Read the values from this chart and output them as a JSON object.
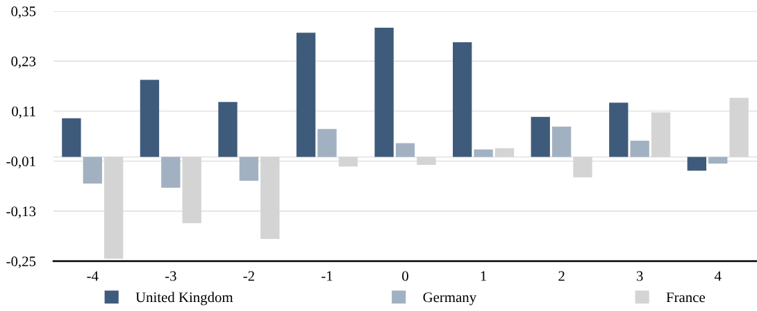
{
  "chart_data": {
    "type": "bar",
    "categories": [
      "-4",
      "-3",
      "-2",
      "-1",
      "0",
      "1",
      "2",
      "3",
      "4"
    ],
    "series": [
      {
        "name": "United Kingdom",
        "color": "#3f5b7b",
        "values": [
          0.093,
          0.185,
          0.132,
          0.298,
          0.31,
          0.275,
          0.096,
          0.13,
          -0.033
        ]
      },
      {
        "name": "Germany",
        "color": "#a2b1c2",
        "values": [
          -0.064,
          -0.074,
          -0.057,
          0.067,
          0.033,
          0.018,
          0.073,
          0.039,
          -0.016
        ]
      },
      {
        "name": "France",
        "color": "#d4d4d4",
        "values": [
          -0.244,
          -0.159,
          -0.197,
          -0.023,
          -0.019,
          0.021,
          -0.049,
          0.107,
          0.142
        ]
      }
    ],
    "ylim": [
      -0.25,
      0.35
    ],
    "yticks": [
      {
        "value": -0.25,
        "label": "-0,25"
      },
      {
        "value": -0.13,
        "label": "-0,13"
      },
      {
        "value": -0.01,
        "label": "-0,01"
      },
      {
        "value": 0.11,
        "label": "0,11"
      },
      {
        "value": 0.23,
        "label": "0,23"
      },
      {
        "value": 0.35,
        "label": "0,35"
      }
    ],
    "ref_lines": [
      {
        "axis": "y",
        "value": 0,
        "color": "#dddddd"
      }
    ],
    "grid": "y",
    "legend": "bottom"
  }
}
